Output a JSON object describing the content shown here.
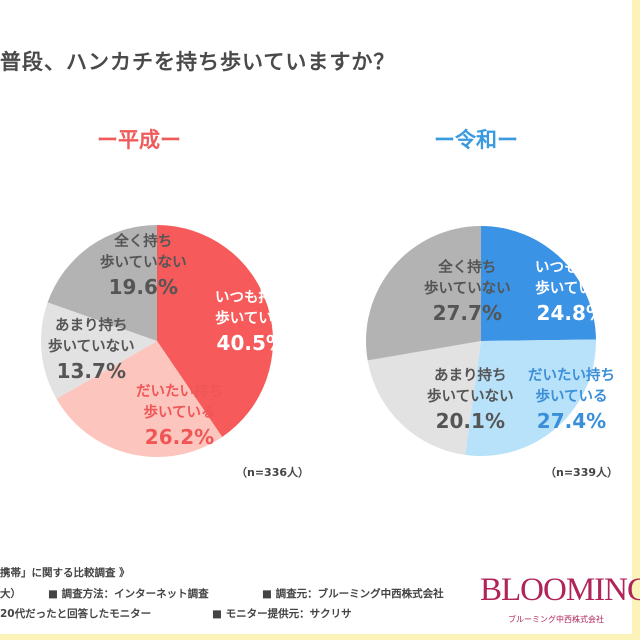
{
  "title": "普段、ハンカチを持ち歩いていますか？",
  "chart_data": [
    {
      "type": "pie",
      "title": "ー平成ー",
      "categories": [
        "いつも持ち歩いている",
        "だいたい持ち歩いている",
        "あまり持ち歩いていない",
        "全く持ち歩いていない"
      ],
      "values": [
        40.5,
        26.2,
        13.7,
        19.6
      ],
      "value_labels": [
        "40.5%",
        "26.2%",
        "13.7%",
        "19.6%"
      ],
      "label_lines": [
        [
          "いつも持ち",
          "歩いている"
        ],
        [
          "だいたい持ち",
          "歩いている"
        ],
        [
          "あまり持ち",
          "歩いていない"
        ],
        [
          "全く持ち",
          "歩いていない"
        ]
      ],
      "colors": [
        "#f65a5a",
        "#fcc6bf",
        "#e2e2e2",
        "#b3b3b3"
      ],
      "text_colors": [
        "#ffffff",
        "#f05656",
        "#555555",
        "#555555"
      ],
      "accent": "#f05a5a",
      "n_label": "（n=336人）"
    },
    {
      "type": "pie",
      "title": "ー令和ー",
      "categories": [
        "いつも持ち歩いている",
        "だいたい持ち歩いている",
        "あまり持ち歩いていない",
        "全く持ち歩いていない"
      ],
      "values": [
        24.8,
        27.4,
        20.1,
        27.7
      ],
      "value_labels": [
        "24.8%",
        "27.4%",
        "20.1%",
        "27.7%"
      ],
      "label_lines": [
        [
          "いつも持ち",
          "歩いている"
        ],
        [
          "だいたい持ち",
          "歩いている"
        ],
        [
          "あまり持ち",
          "歩いていない"
        ],
        [
          "全く持ち",
          "歩いていない"
        ]
      ],
      "colors": [
        "#3a93e4",
        "#b8e1fa",
        "#e2e2e2",
        "#b3b3b3"
      ],
      "text_colors": [
        "#ffffff",
        "#3a8fd8",
        "#555555",
        "#555555"
      ],
      "accent": "#3a9ae0",
      "n_label": "（n=339人）"
    }
  ],
  "footer": {
    "line1": "携帯」に関する比較調査 》",
    "line2a": "大）",
    "line2b": "■ 調査方法：インターネット調査",
    "line2c": "■ 調査元：ブルーミング中西株式会社",
    "line3a": "20代だったと回答したモニター",
    "line3b": "■ モニター提供元：サクリサ"
  },
  "logo": {
    "text": "BLOOMING",
    "sub": "ブルーミング中西株式会社"
  }
}
